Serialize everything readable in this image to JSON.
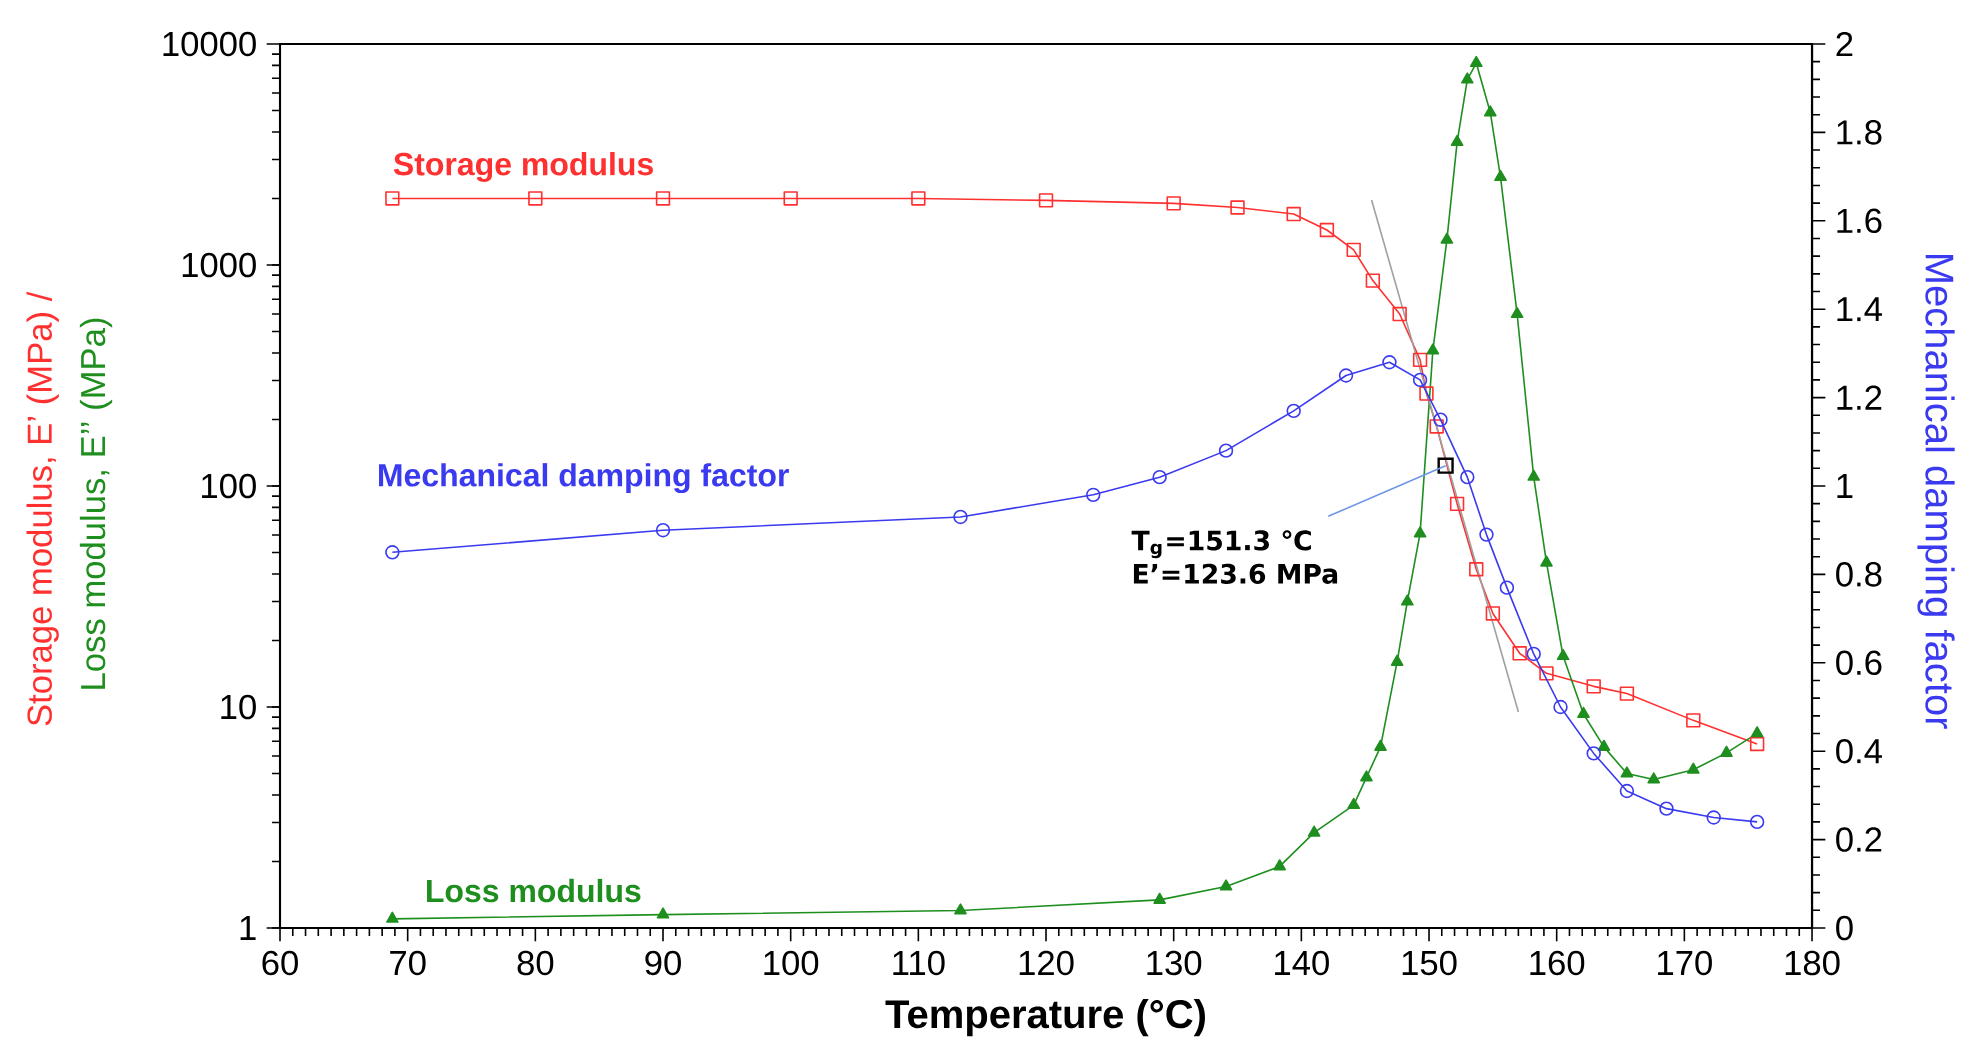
{
  "chart_data": {
    "type": "line",
    "xlabel": "Temperature (°C)",
    "ylabel": "Storage modulus, E’ (MPa) /",
    "y2label": "Mechanical damping factor",
    "xlim": [
      60,
      180
    ],
    "xticks": [
      60,
      70,
      80,
      90,
      100,
      110,
      120,
      130,
      140,
      150,
      160,
      170,
      180
    ],
    "ylim": [
      1,
      10000
    ],
    "yticks": [
      1,
      10,
      100,
      1000,
      10000
    ],
    "log": "y",
    "y2lim": [
      0,
      2
    ],
    "y2ticks": [
      0,
      0.2,
      0.4,
      0.6,
      0.8,
      1,
      1.2,
      1.4,
      1.6,
      1.8,
      2
    ],
    "grid": false,
    "line_style": "solid",
    "series": [
      {
        "name": "Storage modulus",
        "color": "#ff3030",
        "marker": "square",
        "x": [
          68.8,
          80,
          90,
          100,
          110,
          120,
          130,
          135,
          139.4,
          142,
          144.1,
          145.6,
          147.7,
          149.3,
          149.8,
          150.6,
          152.2,
          153.7,
          155.0,
          157.1,
          159.2,
          162.9,
          165.5,
          170.7,
          175.7
        ],
        "values": [
          2000,
          2000,
          2000,
          2000,
          2000,
          1960,
          1900,
          1820,
          1700,
          1440,
          1170,
          850,
          600,
          372,
          262,
          186,
          83,
          42,
          26.5,
          17.5,
          14.2,
          12.4,
          11.5,
          8.7,
          6.8
        ]
      },
      {
        "name": "Loss modulus",
        "color": "#1e8f1e",
        "marker": "triangle",
        "x": [
          68.8,
          90,
          113.3,
          128.9,
          134.1,
          138.3,
          141.0,
          144.1,
          145.1,
          146.2,
          147.5,
          148.3,
          149.3,
          150.3,
          151.4,
          152.2,
          153.0,
          153.7,
          154.8,
          155.6,
          156.9,
          158.2,
          159.2,
          160.5,
          162.1,
          163.7,
          165.5,
          167.6,
          170.7,
          173.3,
          175.7
        ],
        "values": [
          1.1,
          1.15,
          1.2,
          1.34,
          1.54,
          1.9,
          2.7,
          3.6,
          4.8,
          6.6,
          16,
          30,
          61,
          410,
          1300,
          3600,
          6900,
          8200,
          4900,
          2500,
          600,
          110,
          45,
          17,
          9.3,
          6.6,
          5.0,
          4.7,
          5.2,
          6.2,
          7.6
        ]
      },
      {
        "name": "Mechanical damping factor",
        "color": "#3a3af0",
        "marker": "circle",
        "axis": "y2",
        "x": [
          68.8,
          90,
          113.3,
          123.7,
          128.9,
          134.1,
          139.4,
          143.5,
          146.9,
          149.3,
          150.9,
          153.0,
          154.5,
          156.1,
          158.2,
          160.3,
          162.9,
          165.5,
          168.6,
          172.3,
          175.7
        ],
        "values": [
          0.85,
          0.9,
          0.93,
          0.98,
          1.02,
          1.08,
          1.17,
          1.25,
          1.28,
          1.24,
          1.15,
          1.02,
          0.89,
          0.77,
          0.62,
          0.5,
          0.395,
          0.31,
          0.27,
          0.25,
          0.24
        ]
      },
      {
        "type": "line",
        "color": "#a0a0a0",
        "marker": "none",
        "x": [
          145.5,
          157.0
        ],
        "values": [
          1970,
          9.5
        ]
      }
    ],
    "annotations": [
      {
        "text": "T$_{g}$=151.3 ℃\nE’=123.6 MPa",
        "x": 151.3,
        "y": 123.6
      },
      "Loss modulus, E’’ (MPa)"
    ]
  }
}
